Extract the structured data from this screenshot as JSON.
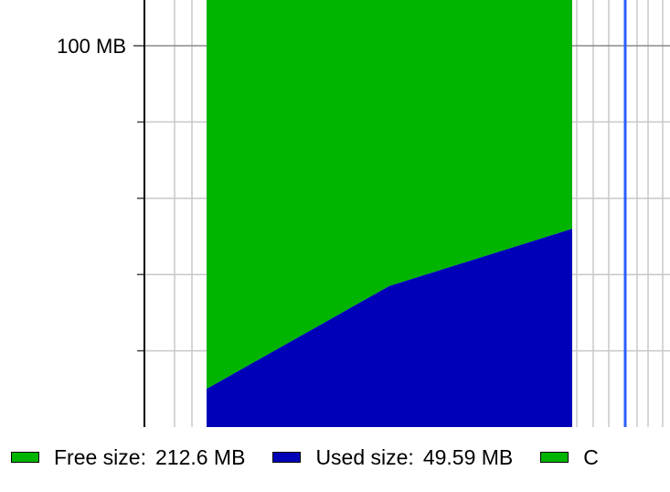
{
  "chart_data": {
    "type": "area",
    "stacked": true,
    "x": [
      0,
      1,
      2
    ],
    "series": [
      {
        "name": "Used size",
        "color": "#0000b8",
        "values": [
          10,
          37,
          52
        ]
      },
      {
        "name": "Free size",
        "color": "#00b400",
        "values": [
          112,
          85,
          70
        ]
      }
    ],
    "y_ticks": [
      0,
      20,
      40,
      60,
      80,
      100,
      112
    ],
    "y_tick_labels": [
      {
        "value": 100,
        "label": "100 MB"
      }
    ],
    "ylim": [
      0,
      112
    ],
    "grid": true,
    "marker_color": "#2b5fff",
    "legend_position": "bottom",
    "legend": [
      {
        "label": "Free size:",
        "value": "212.6 MB",
        "color": "#00b400"
      },
      {
        "label": "Used size:",
        "value": "49.59 MB",
        "color": "#0000b8"
      },
      {
        "label": "C",
        "value": "",
        "color": "#00b400"
      }
    ]
  }
}
